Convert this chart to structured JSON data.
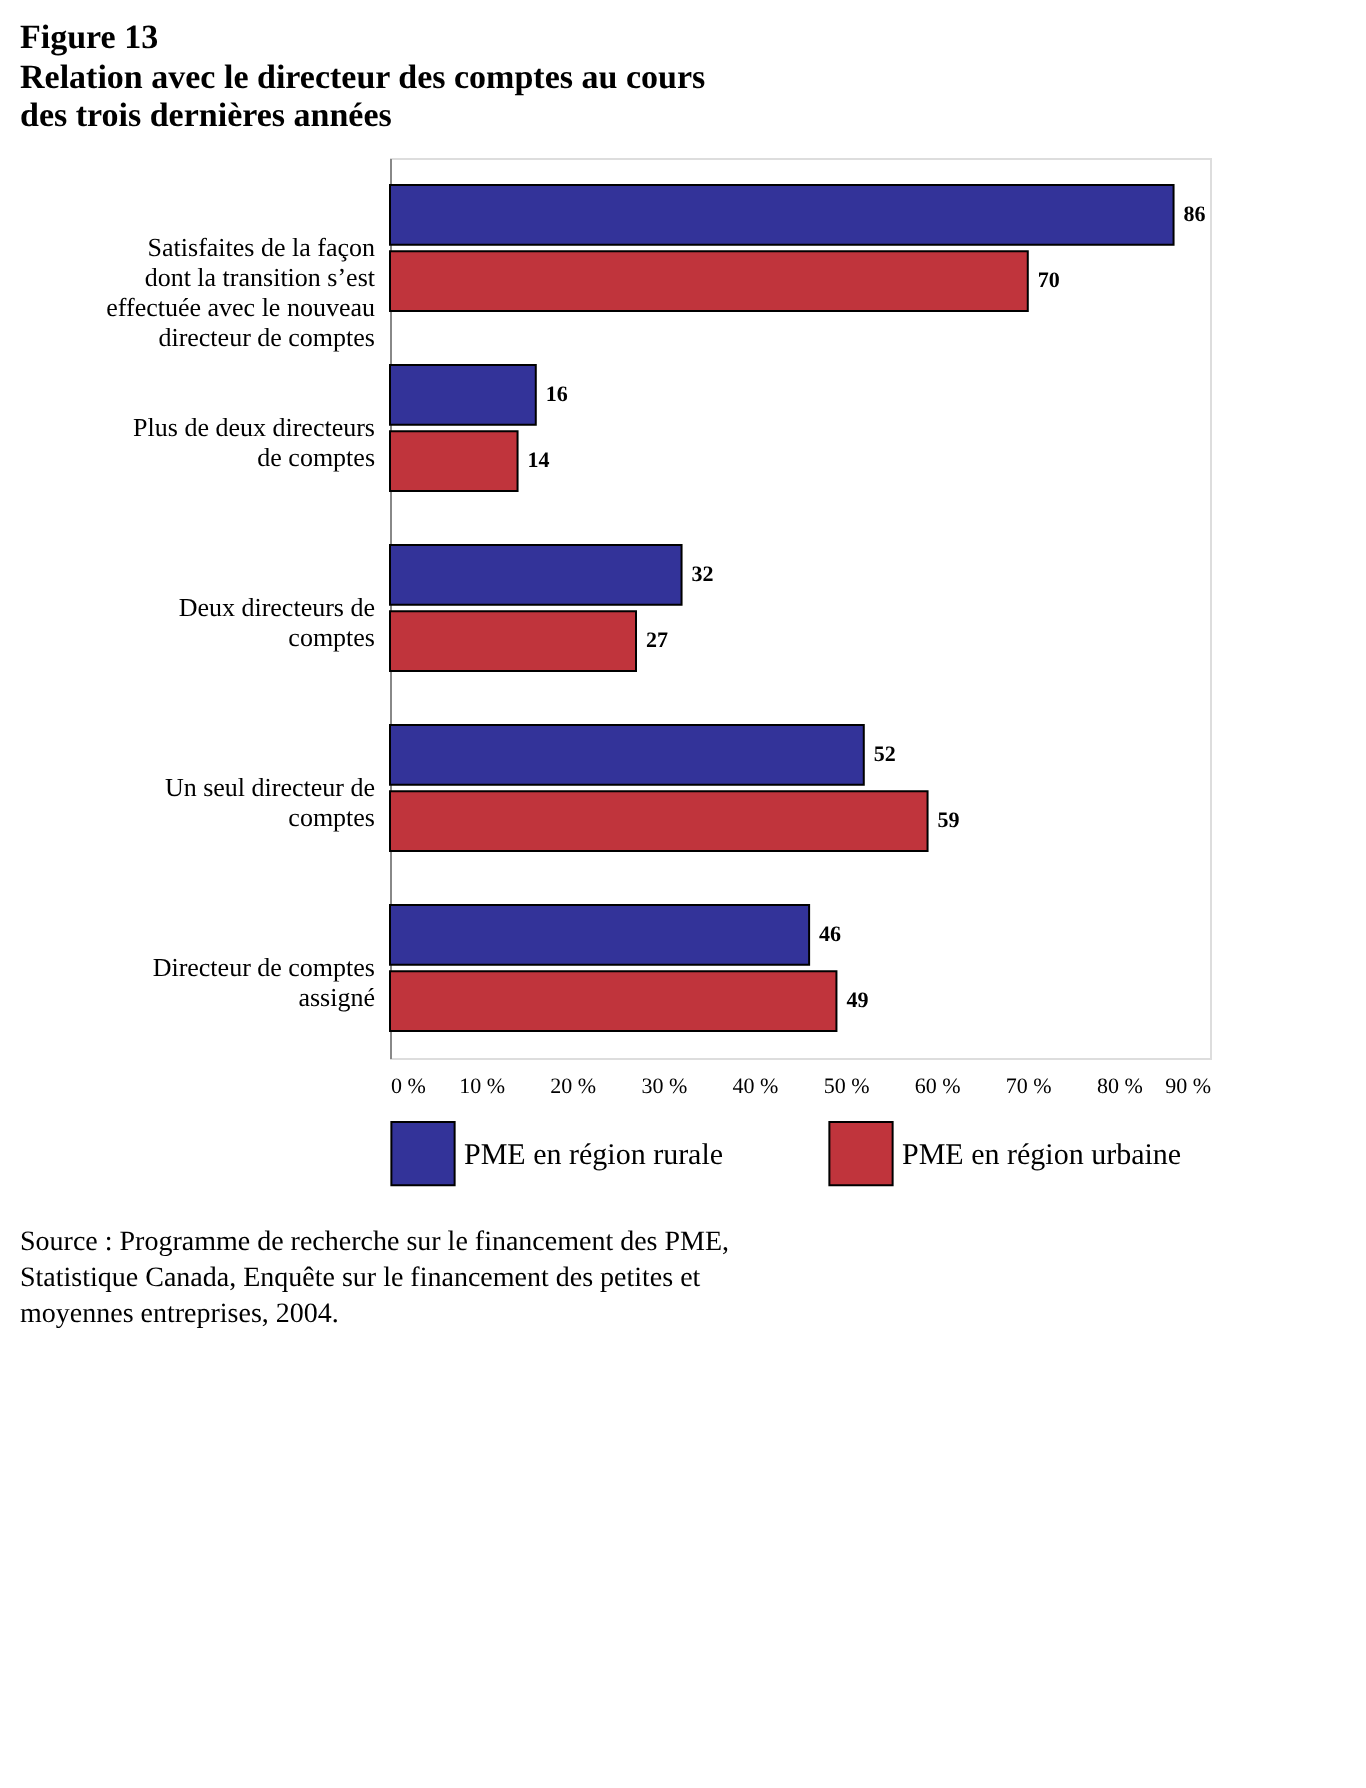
{
  "chart_data": {
    "type": "bar",
    "orientation": "horizontal",
    "title": "Figure 13",
    "subtitle": "Relation avec le directeur des comptes au cours des trois dernières années",
    "categories": [
      "Satisfaites de la façon dont la transition s’est effectuée avec le nouveau directeur de comptes",
      "Plus de deux directeurs de comptes",
      "Deux directeurs de comptes",
      "Un seul directeur de comptes",
      "Directeur de comptes assigné"
    ],
    "series": [
      {
        "name": "PME en région rurale",
        "color": "#333399",
        "values": [
          86,
          16,
          32,
          52,
          46
        ]
      },
      {
        "name": "PME en région urbaine",
        "color": "#c0343c",
        "values": [
          70,
          14,
          27,
          59,
          49
        ]
      }
    ],
    "xlim": [
      0,
      90
    ],
    "xticks": [
      {
        "value": 0,
        "label": "0 %"
      },
      {
        "value": 10,
        "label": "10 %"
      },
      {
        "value": 20,
        "label": "20 %"
      },
      {
        "value": 30,
        "label": "30 %"
      },
      {
        "value": 40,
        "label": "40 %"
      },
      {
        "value": 50,
        "label": "50 %"
      },
      {
        "value": 60,
        "label": "60 %"
      },
      {
        "value": 70,
        "label": "70 %"
      },
      {
        "value": 80,
        "label": "80 %"
      },
      {
        "value": 90,
        "label": "90 %"
      }
    ],
    "data_labels": true,
    "grid": false,
    "legend": "bottom",
    "annotations": [
      "Source : Programme de recherche sur le financement des PME, Statistique Canada, Enquête sur le financement des petites et moyennes entreprises, 2004."
    ]
  }
}
